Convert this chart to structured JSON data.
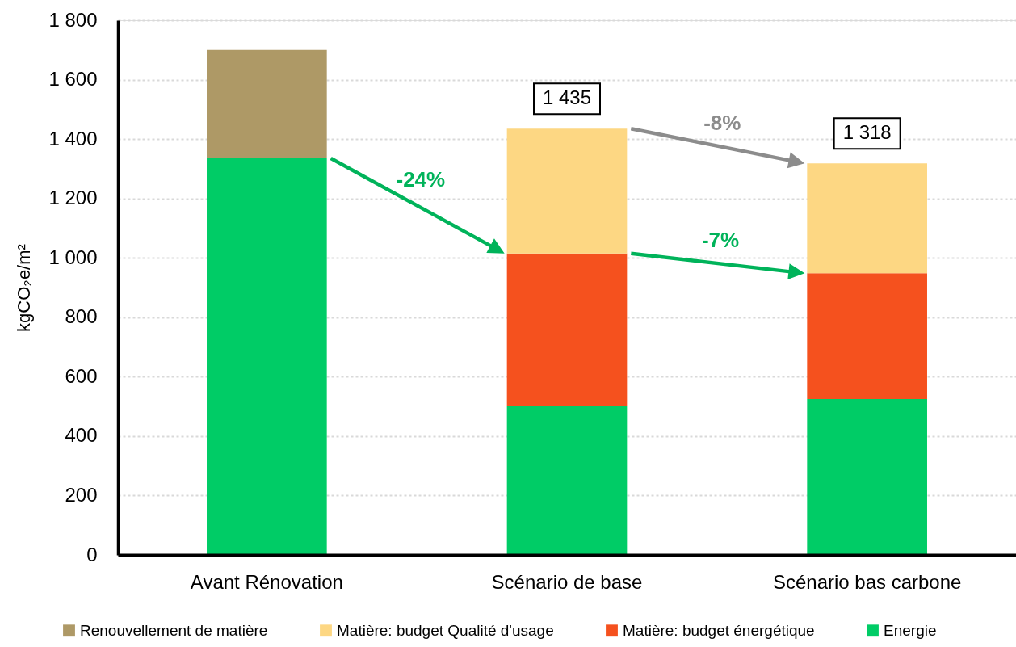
{
  "chart_data": {
    "type": "bar",
    "stacked": true,
    "ylabel": "kgCO₂e/m²",
    "categories": [
      "Avant Rénovation",
      "Scénario de base",
      "Scénario bas carbone"
    ],
    "series": [
      {
        "name": "Energie",
        "color": "#00cc66",
        "values": [
          1335,
          500,
          525
        ]
      },
      {
        "name": "Matière: budget énergétique",
        "color": "#f5511e",
        "values": [
          null,
          515,
          423
        ]
      },
      {
        "name": "Matière: budget Qualité d'usage",
        "color": "#fdd783",
        "values": [
          null,
          420,
          370
        ]
      },
      {
        "name": "Renouvellement de matière",
        "color": "#ae9966",
        "values": [
          365,
          null,
          null
        ]
      }
    ],
    "ylim": [
      0,
      1800
    ],
    "yticks": [
      0,
      200,
      400,
      600,
      800,
      {
        "value": 1000,
        "label": "1 000"
      },
      {
        "value": 1200,
        "label": "1 200"
      },
      {
        "value": 1400,
        "label": "1 400"
      },
      {
        "value": 1600,
        "label": "1 600"
      },
      {
        "value": 1800,
        "label": "1 800"
      }
    ],
    "totals": [
      null,
      "1 435",
      "1 318"
    ],
    "annotations": [
      "-24%",
      "-8%",
      "-7%"
    ],
    "grid": "y",
    "legend": "bottom"
  }
}
